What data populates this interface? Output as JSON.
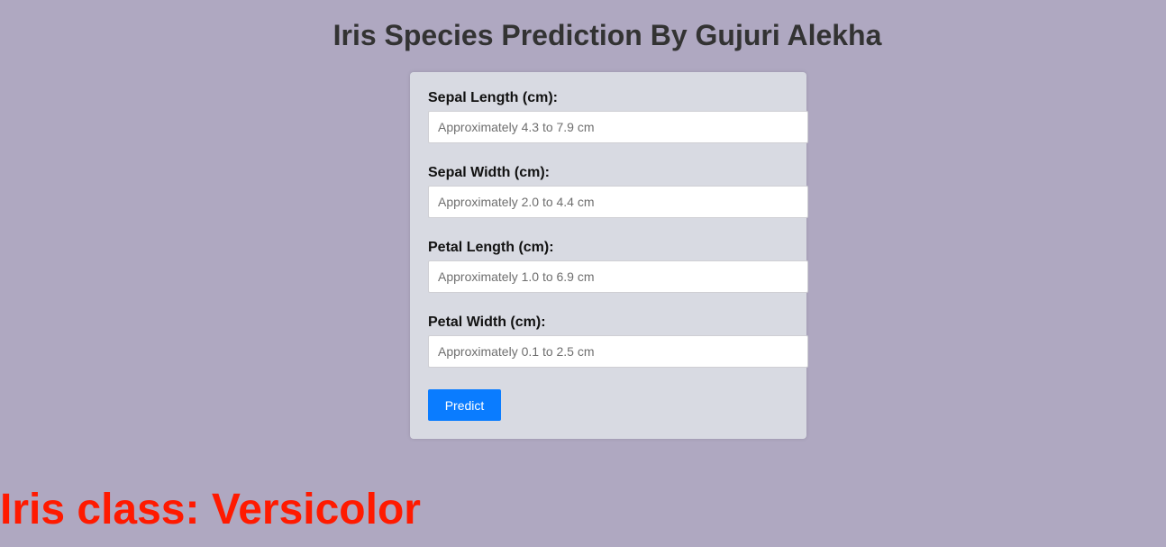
{
  "page": {
    "title": "Iris Species Prediction By Gujuri Alekha"
  },
  "form": {
    "fields": [
      {
        "label": "Sepal Length (cm):",
        "value": "",
        "placeholder": "Approximately 4.3 to 7.9 cm"
      },
      {
        "label": "Sepal Width (cm):",
        "value": "",
        "placeholder": "Approximately 2.0 to 4.4 cm"
      },
      {
        "label": "Petal Length (cm):",
        "value": "",
        "placeholder": "Approximately 1.0 to 6.9 cm"
      },
      {
        "label": "Petal Width (cm):",
        "value": "",
        "placeholder": "Approximately 0.1 to 2.5 cm"
      }
    ],
    "submit_label": "Predict"
  },
  "result": {
    "text": "Iris class: Versicolor"
  },
  "colors": {
    "background": "#afa8c1",
    "card": "#d8dae2",
    "button": "#0a7cff",
    "result": "#ff1a00"
  }
}
